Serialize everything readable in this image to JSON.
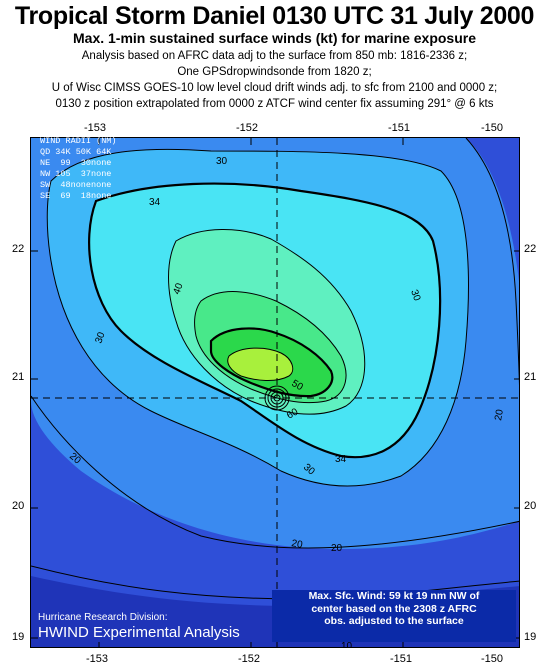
{
  "title": "Tropical Storm Daniel  0130 UTC 31 July 2000",
  "subtitle": "Max. 1-min sustained surface winds (kt) for marine exposure",
  "notes": [
    "Analysis based on AFRC data adj to the surface from 850 mb: 1816-2336 z;",
    "One GPSdropwindsonde from 1820 z;",
    "U of Wisc CIMSS GOES-10 low level cloud drift winds adj. to sfc from 2100 and 0000 z;",
    "0130 z position extrapolated from 0000 z ATCF wind center fix assuming 291° @ 6 kts"
  ],
  "axes": {
    "lon_ticks": [
      "-153",
      "-152",
      "-151",
      "-150"
    ],
    "lat_ticks": [
      "22",
      "21",
      "20",
      "19"
    ]
  },
  "wind_radii": {
    "header": "WIND RADII (NM)",
    "columns": "QD 34K 50K 64K",
    "rows": [
      "NE  99  30none",
      "NW 105  37none",
      "SW  48nonenone",
      "SE  69  18none"
    ]
  },
  "contour_labels": [
    "20",
    "20",
    "20",
    "20",
    "30",
    "30",
    "30",
    "30",
    "34",
    "34",
    "40",
    "50",
    "60",
    "10"
  ],
  "credit": {
    "line1": "Hurricane Research Division:",
    "line2": "HWIND Experimental Analysis"
  },
  "max_wind_box": [
    "Max. Sfc. Wind: 59 kt 19 nm NW of",
    "center based on the 2308 z AFRC",
    "obs. adjusted to the surface"
  ],
  "colors": {
    "lt20": "#2f4fd8",
    "20to30": "#3a8af0",
    "30to34": "#3fb8f8",
    "34to40": "#49e4f4",
    "40to45": "#5ff0c0",
    "45to50": "#48e88a",
    "50to55": "#2bd84b",
    "55plus": "#a8f03c",
    "outer": "#1f34b8"
  }
}
